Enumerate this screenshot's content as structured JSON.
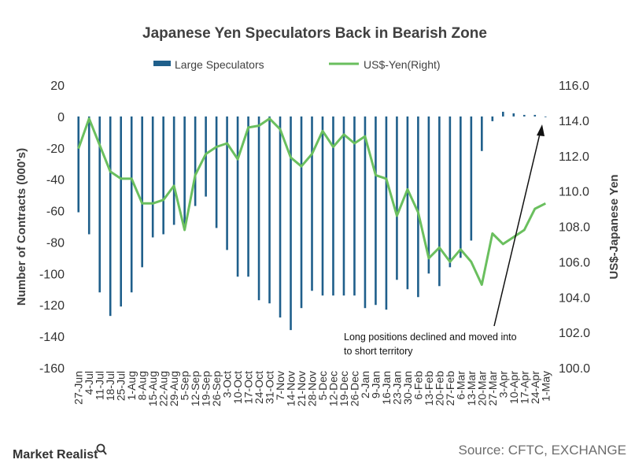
{
  "brand": "Market Realist",
  "source": "Source: CFTC, EXCHANGE",
  "chart_data": {
    "type": "bar+line",
    "title": "Japanese Yen Speculators Back in Bearish Zone",
    "ylabel_left": "Number of Contracts (000's)",
    "ylabel_right": "US$-Japanese Yen",
    "ylim_left": [
      -160,
      20
    ],
    "ylim_right": [
      100.0,
      116.0
    ],
    "yticks_left": [
      "20",
      "0",
      "-20",
      "-40",
      "-60",
      "-80",
      "-100",
      "-120",
      "-140",
      "-160"
    ],
    "yticks_right": [
      "116.0",
      "114.0",
      "112.0",
      "110.0",
      "108.0",
      "106.0",
      "104.0",
      "102.0",
      "100.0"
    ],
    "legend_position": "top",
    "colors": {
      "bars": "#1f5f8b",
      "line": "#6abf5e",
      "text": "#404040"
    },
    "categories": [
      "27-Jun",
      "4-Jul",
      "11-Jul",
      "18-Jul",
      "25-Jul",
      "1-Aug",
      "8-Aug",
      "15-Aug",
      "22-Aug",
      "29-Aug",
      "5-Sep",
      "12-Sep",
      "19-Sep",
      "26-Sep",
      "3-Oct",
      "10-Oct",
      "17-Oct",
      "24-Oct",
      "31-Oct",
      "7-Nov",
      "14-Nov",
      "21-Nov",
      "28-Nov",
      "5-Dec",
      "12-Dec",
      "19-Dec",
      "26-Dec",
      "2-Jan",
      "9-Jan",
      "16-Jan",
      "23-Jan",
      "30-Jan",
      "6-Feb",
      "13-Feb",
      "20-Feb",
      "27-Feb",
      "6-Mar",
      "13-Mar",
      "20-Mar",
      "27-Mar",
      "3-Apr",
      "10-Apr",
      "17-Apr",
      "24-Apr",
      "1-May"
    ],
    "series": [
      {
        "name": "Large Speculators",
        "type": "bar",
        "axis": "left",
        "values": [
          -61,
          -75,
          -112,
          -127,
          -121,
          -112,
          -96,
          -77,
          -75,
          -69,
          -70,
          -57,
          -51,
          -71,
          -85,
          -102,
          -102,
          -117,
          -119,
          -128,
          -136,
          -122,
          -111,
          -114,
          -114,
          -114,
          -114,
          -122,
          -120,
          -123,
          -104,
          -110,
          -115,
          -100,
          -108,
          -96,
          -90,
          -79,
          -22,
          -3,
          3,
          2,
          1,
          1,
          0
        ]
      },
      {
        "name": "US$-Yen(Right)",
        "type": "line",
        "axis": "right",
        "values": [
          112.4,
          114.1,
          112.6,
          111.1,
          110.7,
          110.7,
          109.3,
          109.3,
          109.5,
          110.3,
          107.8,
          110.9,
          112.1,
          112.5,
          112.7,
          111.8,
          113.6,
          113.7,
          114.1,
          113.5,
          111.9,
          111.4,
          112.1,
          113.4,
          112.5,
          113.2,
          112.7,
          113.1,
          110.9,
          110.7,
          108.6,
          110.1,
          108.8,
          106.2,
          106.8,
          106.0,
          106.7,
          106.0,
          104.7,
          107.6,
          107.0,
          107.4,
          107.8,
          109.0,
          109.3
        ]
      }
    ],
    "annotations": [
      "Long positions declined and moved into",
      "to short territory"
    ]
  }
}
